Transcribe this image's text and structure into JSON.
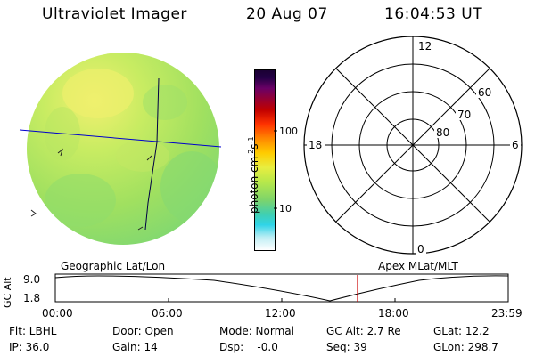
{
  "header": {
    "instrument": "Ultraviolet Imager",
    "date": "20 Aug 07",
    "time": "16:04:53 UT"
  },
  "colorbar": {
    "unit_label": "photon cm",
    "unit_exp1": "-2",
    "unit_s": "s",
    "unit_exp2": "-1",
    "tick_100": "100",
    "tick_10": "10"
  },
  "polar_plot": {
    "mlt_top": "12",
    "mlt_left": "18",
    "mlt_right": "6",
    "mlt_bottom": "0",
    "lat_60": "60",
    "lat_70": "70",
    "lat_80": "80"
  },
  "timeline": {
    "left_title": "Geographic Lat/Lon",
    "right_title": "Apex MLat/MLT",
    "ylabel": "GC Alt",
    "ytick_high": "9.0",
    "ytick_low": "1.8",
    "xticks": [
      "00:00",
      "06:00",
      "12:00",
      "18:00",
      "23:59"
    ]
  },
  "status": {
    "flt": "Flt: LBHL",
    "door": "Door: Open",
    "mode": "Mode: Normal",
    "gcalt": "GC Alt: 2.7 Re",
    "glat": "GLat: 12.2",
    "ip": "IP: 36.0",
    "gain": "Gain: 14",
    "dsp": "Dsp:    -0.0",
    "seq": "Seq: 39",
    "glon": "GLon: 298.7"
  },
  "colors": {
    "image_base": "#a6e65a",
    "image_dark": "#6cd472",
    "image_bright": "#e6f06a",
    "grid_line": "#0000cc",
    "marker_line": "#cc0000"
  }
}
